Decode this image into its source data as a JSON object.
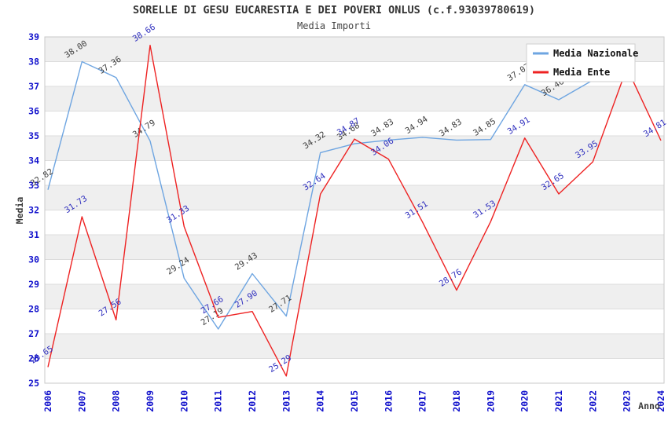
{
  "header": {
    "title": "SORELLE DI GESU EUCARESTIA E DEI POVERI ONLUS (c.f.93039780619)",
    "subtitle": "Media Importi"
  },
  "colors": {
    "background": "#ffffff",
    "band_gray": "#efefef",
    "gridline": "#dcdcdc",
    "plot_border": "#c8c8c8",
    "tick_blue": "#1111cc",
    "title_color": "#333333",
    "subtitle_color": "#444444",
    "axis_title_color": "#3c3c3c",
    "legend_border": "#cfcfcf",
    "legend_bg": "#ffffff",
    "legend_text": "#111111"
  },
  "chart_data": {
    "type": "line",
    "title": "SORELLE DI GESU EUCARESTIA E DEI POVERI ONLUS (c.f.93039780619)",
    "subtitle": "Media Importi",
    "xlabel": "Anno",
    "ylabel": "Media",
    "ylim": [
      25,
      39
    ],
    "ytick_step": 1,
    "grid": "horizontal-bands",
    "legend_position": "top-right",
    "x": [
      "2006",
      "2007",
      "2008",
      "2009",
      "2010",
      "2011",
      "2012",
      "2013",
      "2014",
      "2015",
      "2016",
      "2017",
      "2018",
      "2019",
      "2020",
      "2021",
      "2022",
      "2023",
      "2024"
    ],
    "series": [
      {
        "name": "Media Nazionale",
        "color": "#6ea5e1",
        "label_color": "#3c3c3c",
        "values": [
          32.82,
          38.0,
          37.36,
          34.79,
          29.24,
          27.19,
          29.43,
          27.71,
          34.32,
          34.68,
          34.83,
          34.94,
          34.83,
          34.85,
          37.07,
          36.46,
          37.25,
          null,
          null
        ],
        "label_skip": [
          16
        ]
      },
      {
        "name": "Media Ente",
        "color": "#ee2222",
        "label_color": "#2e2ebe",
        "values": [
          25.65,
          31.73,
          27.56,
          38.66,
          31.33,
          27.66,
          27.9,
          25.29,
          32.64,
          34.87,
          34.06,
          31.51,
          28.76,
          31.53,
          34.91,
          32.65,
          33.95,
          37.75,
          34.81
        ],
        "label_skip": [
          17
        ]
      }
    ]
  }
}
